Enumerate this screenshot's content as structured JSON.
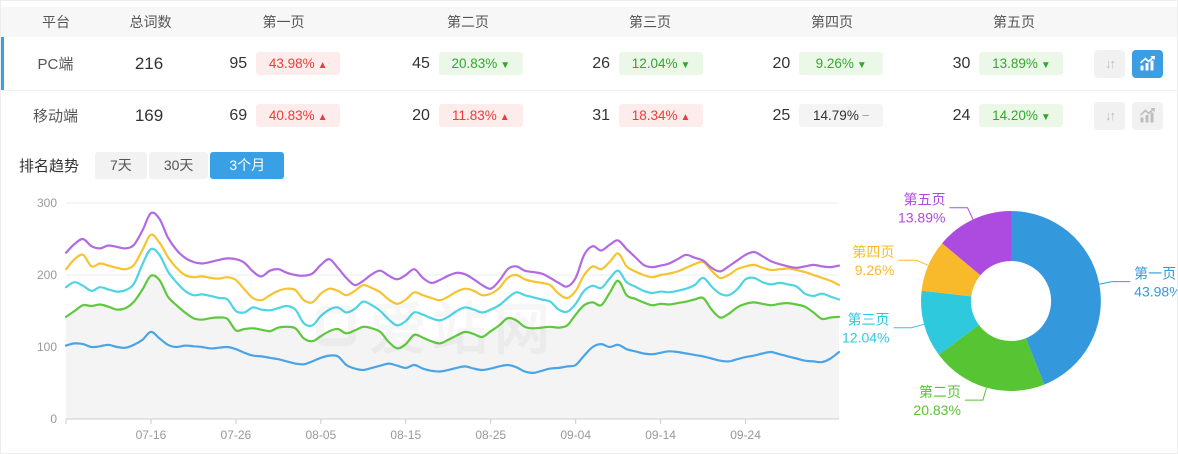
{
  "table": {
    "columns": [
      "平台",
      "总词数",
      "第一页",
      "第二页",
      "第三页",
      "第四页",
      "第五页"
    ],
    "rows": [
      {
        "platform": "PC端",
        "total": "216",
        "selected": true,
        "pages": [
          {
            "count": "95",
            "pct": "43.98%",
            "dir": "up",
            "tone": "red"
          },
          {
            "count": "45",
            "pct": "20.83%",
            "dir": "down",
            "tone": "green"
          },
          {
            "count": "26",
            "pct": "12.04%",
            "dir": "down",
            "tone": "green"
          },
          {
            "count": "20",
            "pct": "9.26%",
            "dir": "down",
            "tone": "green"
          },
          {
            "count": "30",
            "pct": "13.89%",
            "dir": "down",
            "tone": "green"
          }
        ],
        "actions": {
          "trend_active": true
        }
      },
      {
        "platform": "移动端",
        "total": "169",
        "selected": false,
        "pages": [
          {
            "count": "69",
            "pct": "40.83%",
            "dir": "up",
            "tone": "red"
          },
          {
            "count": "20",
            "pct": "11.83%",
            "dir": "up",
            "tone": "red"
          },
          {
            "count": "31",
            "pct": "18.34%",
            "dir": "up",
            "tone": "red"
          },
          {
            "count": "25",
            "pct": "14.79%",
            "dir": "flat",
            "tone": "gray"
          },
          {
            "count": "24",
            "pct": "14.20%",
            "dir": "down",
            "tone": "green"
          }
        ],
        "actions": {
          "trend_active": false
        }
      }
    ]
  },
  "trend": {
    "title": "排名趋势",
    "tabs": [
      {
        "label": "7天",
        "active": false
      },
      {
        "label": "30天",
        "active": false
      },
      {
        "label": "3个月",
        "active": true
      }
    ]
  },
  "watermark": {
    "text": "爱站网"
  },
  "colors": {
    "accent_blue": "#39a0e5",
    "badge_red_text": "#ef3b38",
    "badge_green_text": "#31a72e"
  },
  "chart_data": [
    {
      "type": "line",
      "title": "排名趋势 (3个月)",
      "x_ticks": [
        "07-16",
        "07-26",
        "08-05",
        "08-15",
        "08-25",
        "09-04",
        "09-14",
        "09-24"
      ],
      "ylim": [
        0,
        300
      ],
      "y_ticks": [
        0,
        100,
        200,
        300
      ],
      "grid": true,
      "legend_position": "none",
      "series": [
        {
          "name": "series-blue",
          "color": "#4aa4e5",
          "area": false,
          "values": [
            102,
            105,
            104,
            100,
            101,
            103,
            100,
            99,
            103,
            110,
            121,
            112,
            103,
            100,
            102,
            101,
            100,
            98,
            99,
            100,
            97,
            92,
            88,
            87,
            85,
            83,
            80,
            77,
            76,
            80,
            85,
            88,
            87,
            75,
            70,
            68,
            71,
            74,
            77,
            74,
            71,
            75,
            70,
            67,
            66,
            68,
            71,
            73,
            70,
            68,
            70,
            73,
            75,
            72,
            66,
            64,
            67,
            70,
            71,
            73,
            75,
            88,
            100,
            104,
            100,
            103,
            97,
            94,
            91,
            90,
            92,
            94,
            93,
            91,
            89,
            87,
            84,
            81,
            80,
            83,
            86,
            88,
            91,
            93,
            90,
            87,
            84,
            81,
            80,
            79,
            84,
            93
          ]
        },
        {
          "name": "series-green",
          "color": "#5fc83e",
          "area": true,
          "values": [
            142,
            150,
            158,
            157,
            159,
            156,
            152,
            154,
            163,
            180,
            199,
            193,
            170,
            158,
            148,
            140,
            138,
            140,
            141,
            139,
            123,
            125,
            126,
            124,
            122,
            127,
            128,
            126,
            112,
            108,
            115,
            122,
            125,
            119,
            123,
            128,
            126,
            121,
            107,
            98,
            104,
            117,
            113,
            108,
            105,
            110,
            116,
            121,
            118,
            114,
            122,
            130,
            140,
            137,
            128,
            126,
            127,
            128,
            127,
            130,
            145,
            158,
            162,
            158,
            175,
            192,
            172,
            167,
            162,
            158,
            160,
            159,
            161,
            163,
            166,
            168,
            152,
            141,
            146,
            155,
            160,
            162,
            160,
            158,
            160,
            161,
            159,
            156,
            148,
            139,
            141,
            142
          ]
        },
        {
          "name": "series-cyan",
          "color": "#4ed4e4",
          "area": false,
          "values": [
            183,
            190,
            185,
            178,
            183,
            180,
            177,
            179,
            188,
            215,
            236,
            228,
            205,
            190,
            178,
            172,
            173,
            171,
            168,
            166,
            150,
            148,
            155,
            152,
            151,
            154,
            157,
            152,
            133,
            130,
            143,
            152,
            155,
            148,
            153,
            163,
            158,
            150,
            138,
            130,
            136,
            148,
            145,
            140,
            137,
            142,
            150,
            155,
            152,
            148,
            152,
            158,
            168,
            176,
            172,
            169,
            166,
            163,
            152,
            149,
            160,
            178,
            185,
            182,
            195,
            206,
            190,
            184,
            178,
            175,
            177,
            176,
            178,
            181,
            186,
            196,
            184,
            174,
            172,
            180,
            194,
            196,
            190,
            187,
            189,
            187,
            184,
            174,
            171,
            174,
            170,
            166
          ]
        },
        {
          "name": "series-yellow",
          "color": "#f6c430",
          "area": false,
          "values": [
            208,
            222,
            228,
            212,
            216,
            213,
            210,
            208,
            214,
            235,
            256,
            245,
            225,
            210,
            200,
            197,
            198,
            196,
            195,
            197,
            193,
            180,
            168,
            165,
            172,
            178,
            181,
            179,
            165,
            162,
            174,
            181,
            178,
            172,
            178,
            186,
            182,
            176,
            166,
            160,
            166,
            176,
            172,
            168,
            165,
            170,
            177,
            181,
            178,
            172,
            174,
            182,
            196,
            200,
            194,
            191,
            189,
            186,
            174,
            168,
            178,
            200,
            212,
            208,
            218,
            230,
            212,
            205,
            200,
            197,
            200,
            202,
            205,
            210,
            215,
            218,
            206,
            196,
            200,
            208,
            212,
            214,
            210,
            207,
            208,
            209,
            207,
            204,
            200,
            196,
            192,
            186
          ]
        },
        {
          "name": "series-purple",
          "color": "#b269e2",
          "area": false,
          "values": [
            231,
            243,
            250,
            240,
            237,
            241,
            239,
            237,
            242,
            262,
            286,
            278,
            252,
            235,
            224,
            218,
            216,
            218,
            221,
            223,
            222,
            217,
            205,
            198,
            206,
            208,
            203,
            200,
            199,
            202,
            214,
            222,
            210,
            196,
            186,
            192,
            201,
            206,
            199,
            194,
            200,
            208,
            196,
            189,
            193,
            199,
            203,
            201,
            194,
            186,
            181,
            192,
            208,
            212,
            206,
            204,
            202,
            196,
            189,
            184,
            196,
            228,
            240,
            234,
            242,
            248,
            236,
            225,
            214,
            211,
            213,
            216,
            222,
            228,
            224,
            220,
            210,
            205,
            212,
            220,
            228,
            232,
            226,
            219,
            215,
            212,
            210,
            212,
            214,
            212,
            211,
            213
          ]
        }
      ]
    },
    {
      "type": "pie",
      "donut": true,
      "slices": [
        {
          "label": "第一页",
          "pct_label": "43.98%",
          "value": 43.98,
          "color": "#3399dc"
        },
        {
          "label": "第二页",
          "pct_label": "20.83%",
          "value": 20.83,
          "color": "#56c433"
        },
        {
          "label": "第三页",
          "pct_label": "12.04%",
          "value": 12.04,
          "color": "#2fc9dd"
        },
        {
          "label": "第四页",
          "pct_label": "9.26%",
          "value": 9.26,
          "color": "#f8ba2b"
        },
        {
          "label": "第五页",
          "pct_label": "13.89%",
          "value": 13.89,
          "color": "#ad4be0"
        }
      ]
    }
  ]
}
